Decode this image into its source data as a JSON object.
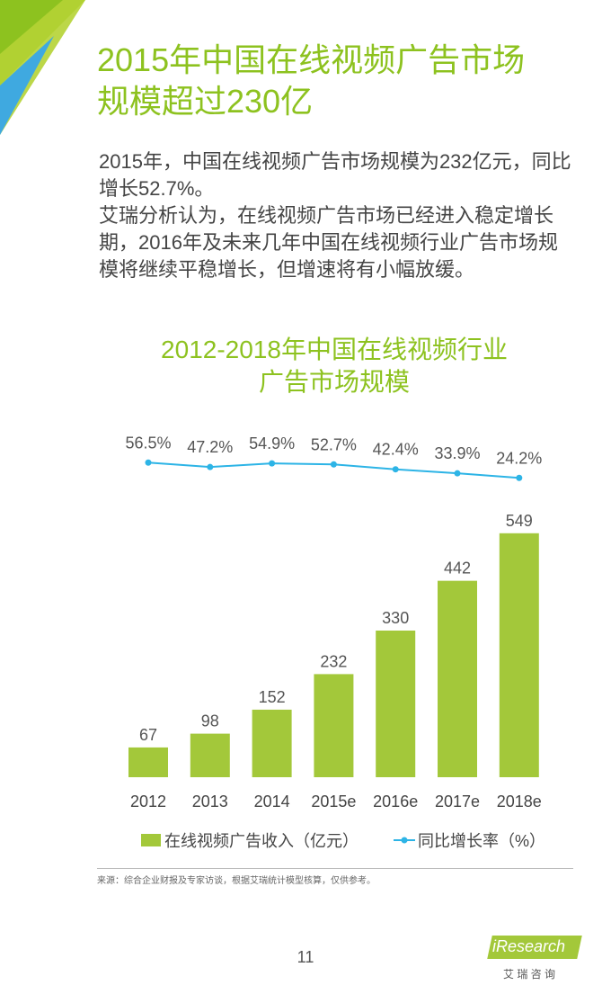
{
  "header": {
    "title": [
      "2015年中国在线视频广告市场",
      "规模超过230亿"
    ]
  },
  "paragraphs": [
    "2015年，中国在线视频广告市场规模为232亿元，同比增长52.7%。",
    "艾瑞分析认为，在线视频广告市场已经进入稳定增长期，2016年及未来几年中国在线视频行业广告市场规模将继续平稳增长，但增速将有小幅放缓。"
  ],
  "chart_data": {
    "type": "bar",
    "title": [
      "2012-2018年中国在线视频行业",
      "广告市场规模"
    ],
    "categories": [
      "2012",
      "2013",
      "2014",
      "2015e",
      "2016e",
      "2017e",
      "2018e"
    ],
    "series": [
      {
        "name": "在线视频广告收入（亿元）",
        "type": "bar",
        "color": "#a3c83a",
        "values": [
          67,
          98,
          152,
          232,
          330,
          442,
          549
        ]
      },
      {
        "name": "同比增长率（%）",
        "type": "line",
        "axis": "y2",
        "color": "#2db4e6",
        "values": [
          56.5,
          47.2,
          54.9,
          52.7,
          42.4,
          33.9,
          24.2
        ],
        "value_labels": [
          "56.5%",
          "47.2%",
          "54.9%",
          "52.7%",
          "42.4%",
          "33.9%",
          "24.2%"
        ]
      }
    ]
  },
  "source": "来源：综合企业财报及专家访谈，根据艾瑞统计模型核算，仅供参考。",
  "page_number": "11",
  "logo": {
    "name": "iResearch",
    "subtitle": "艾 瑞 咨 询"
  }
}
